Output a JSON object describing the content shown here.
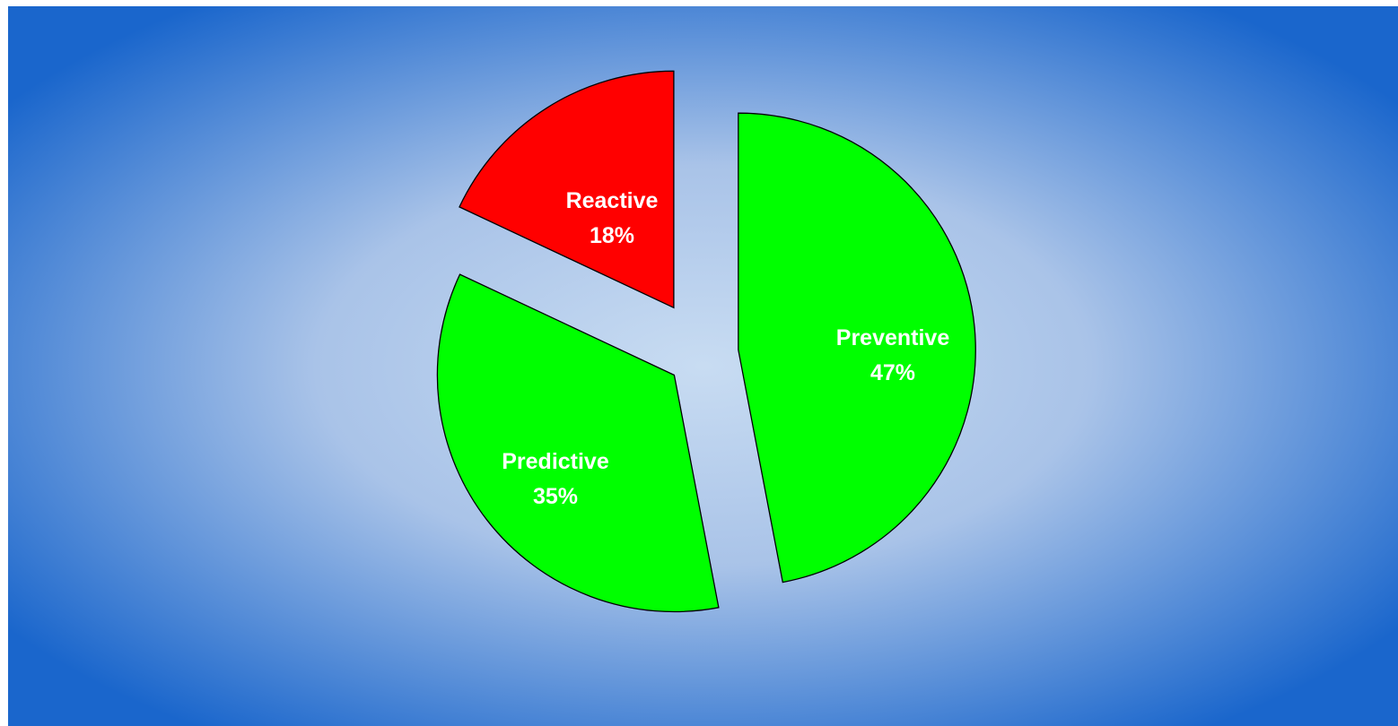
{
  "chart_data": {
    "type": "pie",
    "title": "",
    "exploded": true,
    "categories": [
      "Preventive",
      "Predictive",
      "Reactive"
    ],
    "values": [
      47,
      35,
      18
    ],
    "labels": [
      {
        "name": "Preventive",
        "value_text": "47%"
      },
      {
        "name": "Predictive",
        "value_text": "35%"
      },
      {
        "name": "Reactive",
        "value_text": "18%"
      }
    ],
    "colors": [
      "#00ff00",
      "#00ff00",
      "#ff0000"
    ],
    "background": {
      "style": "radial-gradient",
      "center_color": "#c8dcf2",
      "edge_color": "#1a66cc"
    }
  }
}
